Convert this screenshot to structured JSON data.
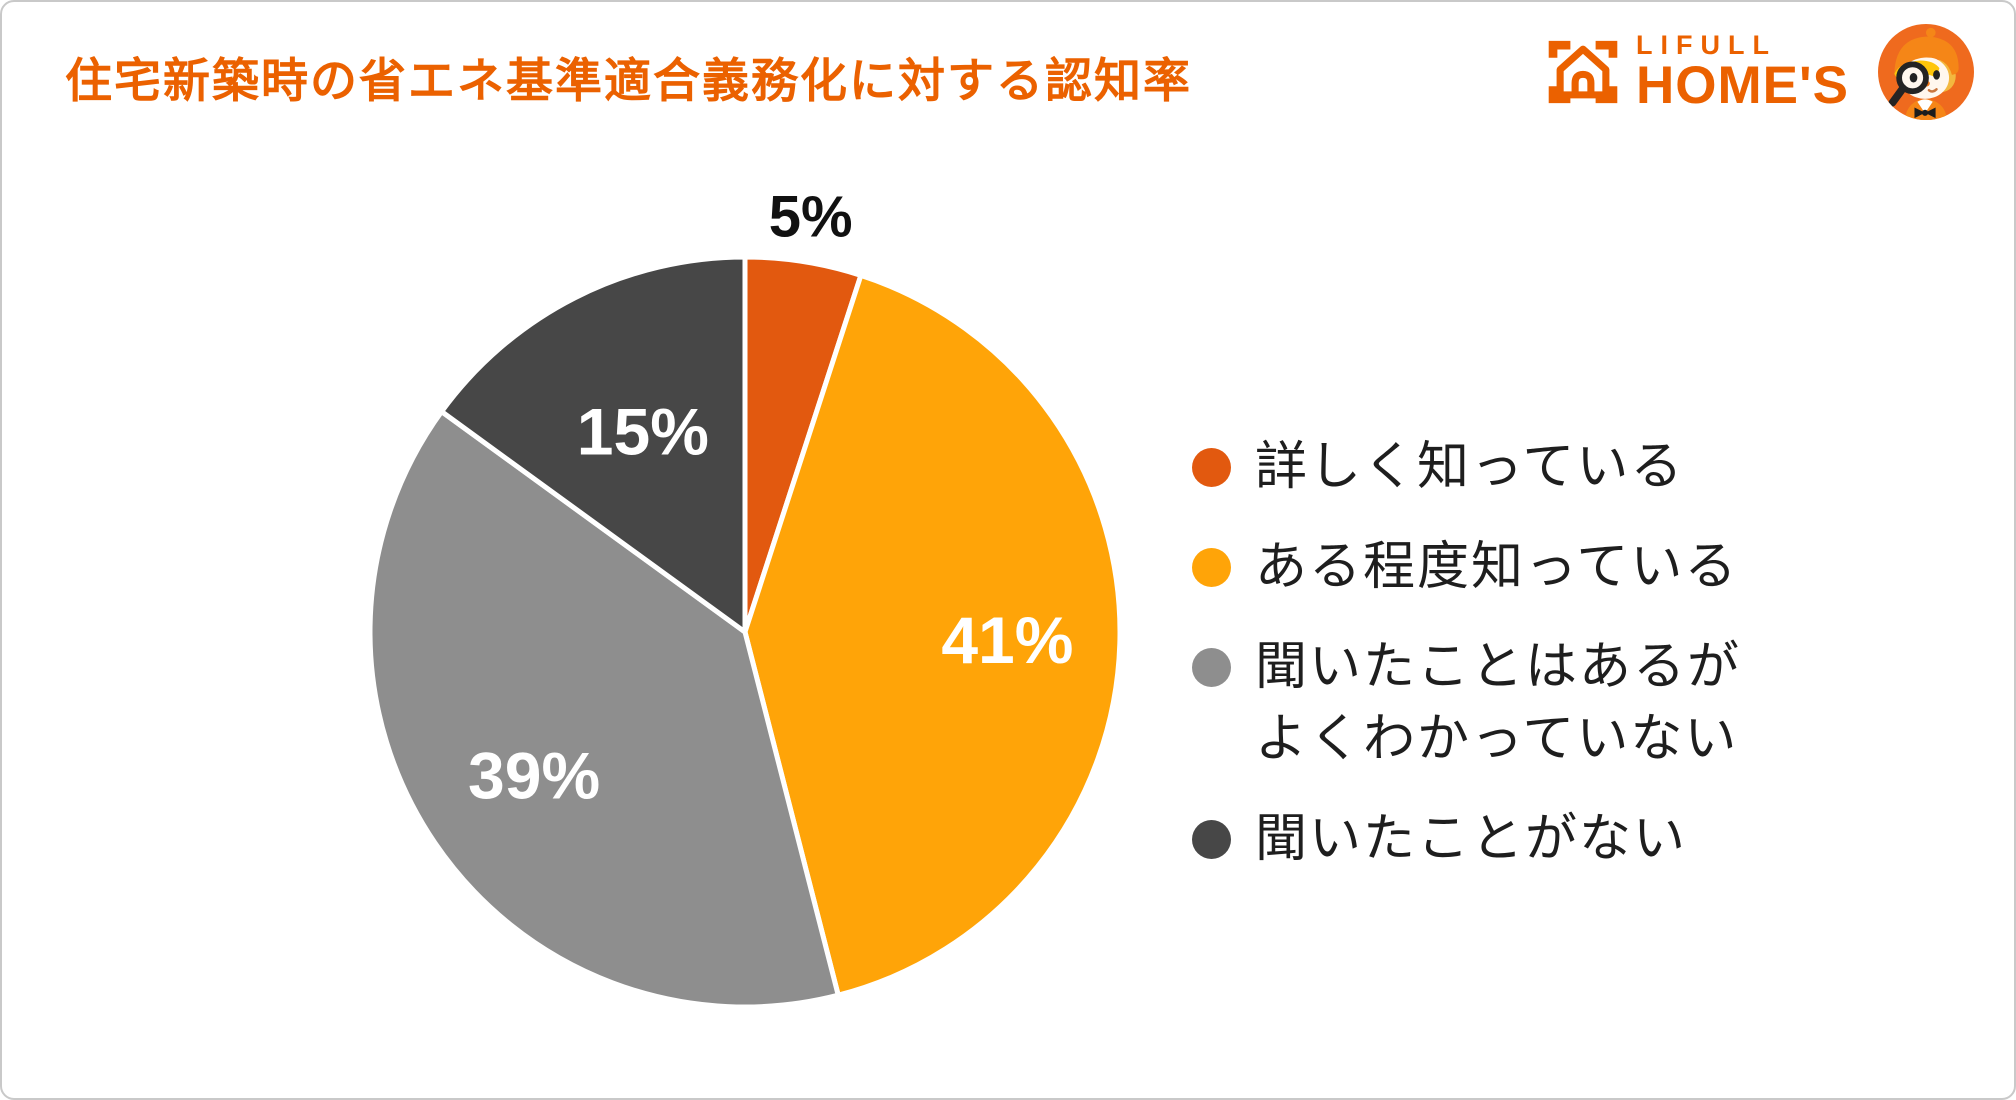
{
  "title": "住宅新築時の省エネ基準適合義務化に対する認知率",
  "brand": {
    "line1": "LIFULL",
    "line2": "HOME'S",
    "color": "#EB6100",
    "icons": [
      "house-frame-icon",
      "homes-kun-mascot-icon"
    ]
  },
  "chart_data": {
    "type": "pie",
    "title": "住宅新築時の省エネ基準適合義務化に対する認知率",
    "unit": "%",
    "start_angle_deg": -90,
    "direction": "clockwise",
    "legend_position": "right",
    "separator_color": "#FFFFFF",
    "slices": [
      {
        "label": "詳しく知っている",
        "value": 5,
        "display": "5%",
        "color": "#E2590F",
        "label_color": "#111111",
        "label_position": "outside"
      },
      {
        "label": "ある程度知っている",
        "value": 41,
        "display": "41%",
        "color": "#FFA408",
        "label_color": "#FFFFFF",
        "label_position": "inside"
      },
      {
        "label": "聞いたことはあるがよくわかっていない",
        "value": 39,
        "display": "39%",
        "color": "#8E8E8E",
        "label_color": "#FFFFFF",
        "label_position": "inside"
      },
      {
        "label": "聞いたことがない",
        "value": 15,
        "display": "15%",
        "color": "#474747",
        "label_color": "#FFFFFF",
        "label_position": "inside"
      }
    ]
  },
  "legend": {
    "items": [
      {
        "lines": [
          "詳しく知っている"
        ],
        "color": "#E2590F"
      },
      {
        "lines": [
          "ある程度知っている"
        ],
        "color": "#FFA408"
      },
      {
        "lines": [
          "聞いたことはあるが",
          "よくわかっていない"
        ],
        "color": "#8E8E8E"
      },
      {
        "lines": [
          "聞いたことがない"
        ],
        "color": "#474747"
      }
    ]
  }
}
